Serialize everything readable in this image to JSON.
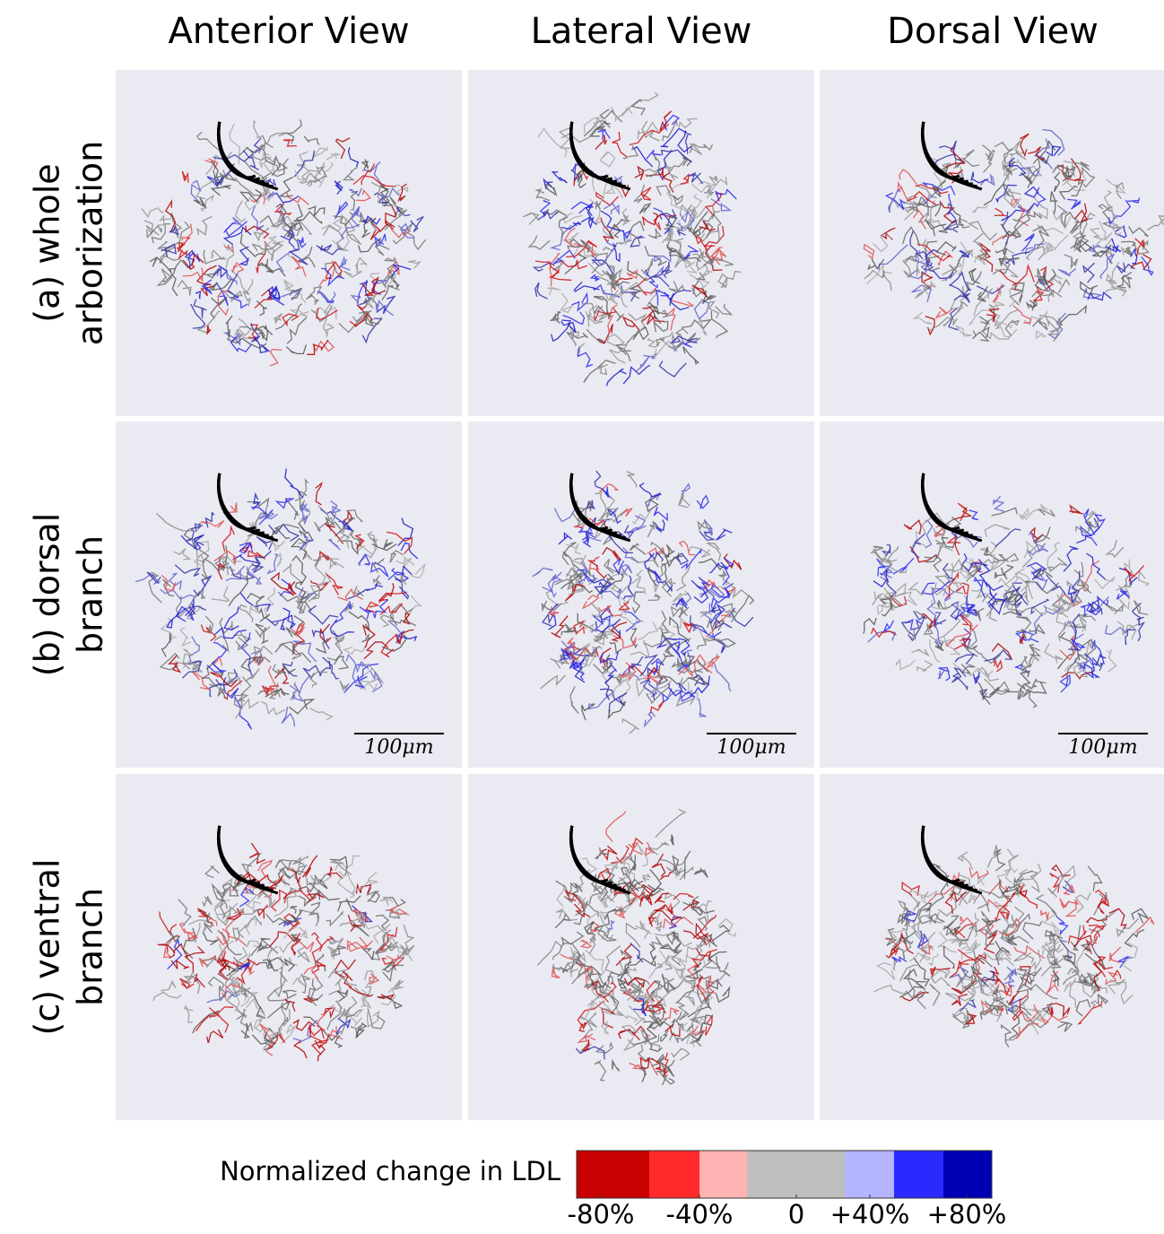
{
  "column_titles": [
    "Anterior View",
    "Lateral View",
    "Dorsal View"
  ],
  "row_labels": [
    [
      "(a) whole",
      "arborization"
    ],
    [
      "(b) dorsal",
      "branch"
    ],
    [
      "(c) ventral",
      "branch"
    ]
  ],
  "scale_bars": [
    "100μm",
    "100μm",
    "100μm"
  ],
  "colorbar": {
    "label": "Normalized change in LDL",
    "colors": [
      "#c80000",
      "#ff2a2a",
      "#ffb4b4",
      "#bebebe",
      "#b4b4ff",
      "#2a2aff",
      "#0000b4"
    ],
    "ticks": [
      "-80%",
      "-40%",
      "0",
      "+40%",
      "+80%"
    ]
  }
}
